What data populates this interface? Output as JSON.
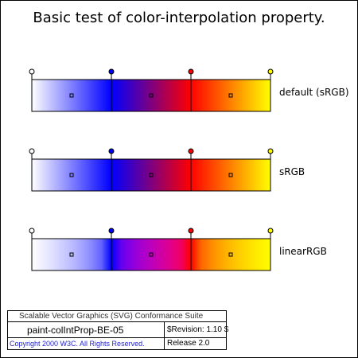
{
  "title": "Basic test of color-interpolation property.",
  "stop_colors": [
    "#ffffff",
    "#0000ff",
    "#ff0000",
    "#ffff00"
  ],
  "rows": [
    {
      "label": "default (sRGB)",
      "mode": "sRGB"
    },
    {
      "label": "sRGB",
      "mode": "sRGB"
    },
    {
      "label": "linearRGB",
      "mode": "linearRGB"
    }
  ],
  "footer": {
    "suite": "Scalable Vector Graphics (SVG) Conformance Suite",
    "test_name": "paint-colIntProp-BE-05",
    "revision": "$Revision: 1.10 $",
    "copyright": "Copyright 2000 W3C. All Rights Reserved.",
    "release": "Release 2.0"
  }
}
